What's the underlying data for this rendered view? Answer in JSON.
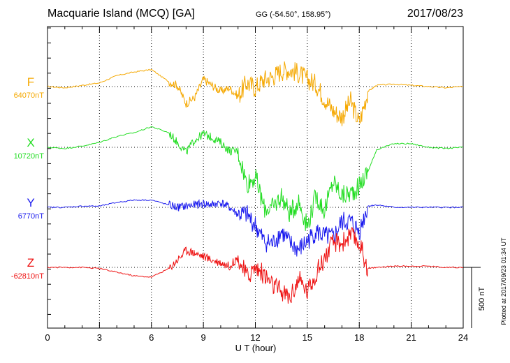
{
  "header": {
    "station": "Macquarie Island (MCQ)  [GA]",
    "coords": "GG (-54.50°, 158.95°)",
    "date": "2017/08/23"
  },
  "footer": {
    "plotted": "Plotted at 2017/09/23 01:34 UT"
  },
  "chart_data": {
    "type": "line",
    "title": "Macquarie Island (MCQ)  [GA]",
    "xlabel": "U T (hour)",
    "xlim": [
      0,
      24
    ],
    "xticks": [
      0,
      3,
      6,
      9,
      12,
      15,
      18,
      21,
      24
    ],
    "xtick_labels": [
      "0",
      "3",
      "6",
      "9",
      "12",
      "15",
      "18",
      "21",
      "24"
    ],
    "scale_bar": {
      "label": "500 nT",
      "value_nT": 500
    },
    "grid": true,
    "series": [
      {
        "name": "F",
        "baseline_label": "64070nT",
        "baseline_nT": 64070,
        "color": "#f5a800",
        "x": [
          0,
          1,
          2,
          3,
          4,
          5,
          6,
          7,
          7.5,
          8,
          8.5,
          9,
          9.5,
          10,
          10.5,
          11,
          11.5,
          12,
          12.5,
          13,
          13.5,
          14,
          14.5,
          15,
          15.5,
          16,
          16.5,
          17,
          17.5,
          18,
          18.5,
          19,
          20,
          21,
          22,
          23,
          24
        ],
        "offset_nT": [
          0,
          -10,
          10,
          30,
          90,
          120,
          140,
          40,
          10,
          -140,
          -90,
          60,
          10,
          -40,
          -10,
          -80,
          30,
          -10,
          60,
          80,
          130,
          140,
          110,
          60,
          20,
          -100,
          -200,
          -250,
          -120,
          -300,
          -40,
          10,
          20,
          10,
          0,
          -10,
          0
        ]
      },
      {
        "name": "X",
        "baseline_label": "10720nT",
        "baseline_nT": 10720,
        "color": "#22dd22",
        "x": [
          0,
          1,
          2,
          3,
          4,
          5,
          6,
          7,
          7.5,
          8,
          8.5,
          9,
          9.5,
          10,
          10.5,
          11,
          11.5,
          12,
          12.5,
          13,
          13.5,
          14,
          14.5,
          15,
          15.5,
          16,
          16.5,
          17,
          17.5,
          18,
          18.5,
          19,
          20,
          21,
          22,
          23,
          24
        ],
        "offset_nT": [
          0,
          -10,
          10,
          40,
          90,
          120,
          170,
          120,
          40,
          -40,
          60,
          110,
          80,
          40,
          -30,
          -30,
          -300,
          -240,
          -500,
          -500,
          -400,
          -550,
          -440,
          -650,
          -400,
          -520,
          -280,
          -400,
          -380,
          -320,
          -200,
          -20,
          30,
          30,
          0,
          -10,
          0
        ]
      },
      {
        "name": "Y",
        "baseline_label": "6770nT",
        "baseline_nT": 6770,
        "color": "#1a1aee",
        "x": [
          0,
          1,
          2,
          3,
          4,
          5,
          6,
          7,
          7.5,
          8,
          8.5,
          9,
          9.5,
          10,
          10.5,
          11,
          11.5,
          12,
          12.5,
          13,
          13.5,
          14,
          14.5,
          15,
          15.5,
          16,
          16.5,
          17,
          17.5,
          18,
          18.5,
          19,
          20,
          21,
          22,
          23,
          24
        ],
        "offset_nT": [
          0,
          0,
          10,
          10,
          40,
          60,
          60,
          20,
          0,
          10,
          20,
          30,
          20,
          40,
          0,
          -60,
          -60,
          -150,
          -280,
          -300,
          -200,
          -300,
          -350,
          -280,
          -200,
          -240,
          -250,
          -120,
          -120,
          -200,
          10,
          20,
          0,
          0,
          0,
          0,
          0
        ]
      },
      {
        "name": "Z",
        "baseline_label": "-62810nT",
        "baseline_nT": -62810,
        "color": "#ee1111",
        "x": [
          0,
          1,
          2,
          3,
          4,
          5,
          6,
          7,
          7.5,
          8,
          8.5,
          9,
          9.5,
          10,
          10.5,
          11,
          11.5,
          12,
          12.5,
          13,
          13.5,
          14,
          14.5,
          15,
          15.5,
          16,
          16.5,
          17,
          17.5,
          18,
          18.5,
          19,
          20,
          21,
          22,
          23,
          24
        ],
        "offset_nT": [
          0,
          0,
          0,
          -10,
          -40,
          -70,
          -80,
          -10,
          60,
          140,
          120,
          90,
          60,
          40,
          10,
          80,
          -80,
          0,
          -60,
          -150,
          -200,
          -250,
          -100,
          -200,
          -50,
          80,
          200,
          200,
          260,
          200,
          -10,
          0,
          10,
          10,
          10,
          0,
          0
        ]
      }
    ]
  }
}
